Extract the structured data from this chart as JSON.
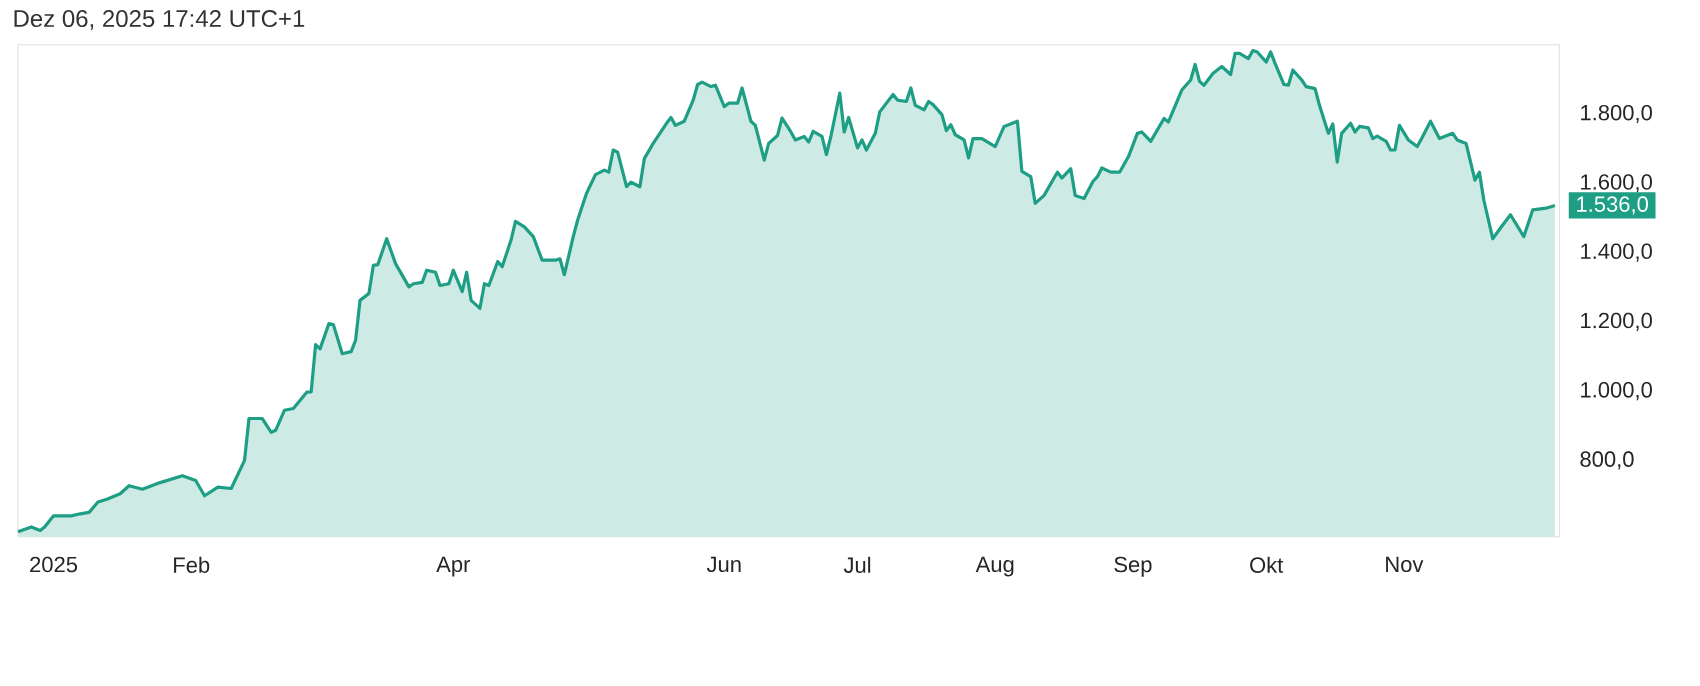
{
  "chart_data": {
    "type": "area",
    "annotations": [
      "Dez 06, 2025 17:42 UTC+1",
      {
        "text": "1.536,0",
        "x": "2025-12-05",
        "y": 1536
      }
    ],
    "x": [
      "2024-12-24",
      "2024-12-27",
      "2024-12-29",
      "2024-12-30",
      "2025-01-01",
      "2025-01-05",
      "2025-01-07",
      "2025-01-09",
      "2025-01-11",
      "2025-01-13",
      "2025-01-16",
      "2025-01-18",
      "2025-01-21",
      "2025-01-25",
      "2025-01-30",
      "2025-02-02",
      "2025-02-04",
      "2025-02-07",
      "2025-02-10",
      "2025-02-11",
      "2025-02-13",
      "2025-02-14",
      "2025-02-17",
      "2025-02-19",
      "2025-02-20",
      "2025-02-22",
      "2025-02-24",
      "2025-02-27",
      "2025-02-28",
      "2025-03-01",
      "2025-03-02",
      "2025-03-04",
      "2025-03-05",
      "2025-03-07",
      "2025-03-09",
      "2025-03-10",
      "2025-03-11",
      "2025-03-13",
      "2025-03-14",
      "2025-03-15",
      "2025-03-17",
      "2025-03-19",
      "2025-03-22",
      "2025-03-23",
      "2025-03-25",
      "2025-03-26",
      "2025-03-28",
      "2025-03-29",
      "2025-03-31",
      "2025-04-01",
      "2025-04-03",
      "2025-04-04",
      "2025-04-05",
      "2025-04-07",
      "2025-04-08",
      "2025-04-09",
      "2025-04-11",
      "2025-04-12",
      "2025-04-14",
      "2025-04-15",
      "2025-04-17",
      "2025-04-19",
      "2025-04-21",
      "2025-04-24",
      "2025-04-25",
      "2025-04-26",
      "2025-04-28",
      "2025-04-29",
      "2025-05-01",
      "2025-05-03",
      "2025-05-05",
      "2025-05-06",
      "2025-05-07",
      "2025-05-08",
      "2025-05-10",
      "2025-05-11",
      "2025-05-13",
      "2025-05-14",
      "2025-05-16",
      "2025-05-19",
      "2025-05-20",
      "2025-05-21",
      "2025-05-23",
      "2025-05-25",
      "2025-05-26",
      "2025-05-27",
      "2025-05-29",
      "2025-05-30",
      "2025-06-01",
      "2025-06-02",
      "2025-06-04",
      "2025-06-05",
      "2025-06-07",
      "2025-06-08",
      "2025-06-10",
      "2025-06-11",
      "2025-06-13",
      "2025-06-14",
      "2025-06-16",
      "2025-06-17",
      "2025-06-19",
      "2025-06-20",
      "2025-06-21",
      "2025-06-23",
      "2025-06-24",
      "2025-06-25",
      "2025-06-27",
      "2025-06-28",
      "2025-06-29",
      "2025-07-01",
      "2025-07-02",
      "2025-07-03",
      "2025-07-05",
      "2025-07-06",
      "2025-07-09",
      "2025-07-10",
      "2025-07-12",
      "2025-07-13",
      "2025-07-14",
      "2025-07-16",
      "2025-07-17",
      "2025-07-18",
      "2025-07-20",
      "2025-07-21",
      "2025-07-22",
      "2025-07-23",
      "2025-07-25",
      "2025-07-26",
      "2025-07-27",
      "2025-07-29",
      "2025-08-01",
      "2025-08-03",
      "2025-08-04",
      "2025-08-06",
      "2025-08-07",
      "2025-08-09",
      "2025-08-10",
      "2025-08-12",
      "2025-08-15",
      "2025-08-16",
      "2025-08-18",
      "2025-08-19",
      "2025-08-21",
      "2025-08-23",
      "2025-08-24",
      "2025-08-25",
      "2025-08-27",
      "2025-08-29",
      "2025-08-31",
      "2025-09-02",
      "2025-09-03",
      "2025-09-05",
      "2025-09-08",
      "2025-09-09",
      "2025-09-12",
      "2025-09-14",
      "2025-09-15",
      "2025-09-16",
      "2025-09-17",
      "2025-09-19",
      "2025-09-21",
      "2025-09-23",
      "2025-09-24",
      "2025-09-25",
      "2025-09-27",
      "2025-09-28",
      "2025-09-29",
      "2025-10-01",
      "2025-10-02",
      "2025-10-03",
      "2025-10-05",
      "2025-10-06",
      "2025-10-07",
      "2025-10-09",
      "2025-10-10",
      "2025-10-12",
      "2025-10-13",
      "2025-10-15",
      "2025-10-16",
      "2025-10-17",
      "2025-10-18",
      "2025-10-20",
      "2025-10-21",
      "2025-10-22",
      "2025-10-24",
      "2025-10-25",
      "2025-10-26",
      "2025-10-28",
      "2025-10-29",
      "2025-10-30",
      "2025-10-31",
      "2025-11-02",
      "2025-11-04",
      "2025-11-05",
      "2025-11-07",
      "2025-11-09",
      "2025-11-12",
      "2025-11-13",
      "2025-11-15",
      "2025-11-17",
      "2025-11-18",
      "2025-11-19",
      "2025-11-21",
      "2025-11-23",
      "2025-11-25",
      "2025-11-28",
      "2025-11-30",
      "2025-12-03",
      "2025-12-05"
    ],
    "series": [
      {
        "color": "#1e9e84",
        "values": [
          594,
          608,
          598,
          608,
          640,
          640,
          646,
          650,
          680,
          688,
          704,
          727,
          717,
          736,
          756,
          742,
          698,
          723,
          719,
          746,
          800,
          921,
          921,
          881,
          887,
          945,
          950,
          997,
          998,
          1134,
          1122,
          1195,
          1192,
          1108,
          1114,
          1147,
          1262,
          1282,
          1363,
          1365,
          1440,
          1368,
          1301,
          1310,
          1314,
          1349,
          1343,
          1305,
          1310,
          1349,
          1287,
          1343,
          1262,
          1239,
          1310,
          1305,
          1374,
          1359,
          1436,
          1490,
          1474,
          1446,
          1378,
          1378,
          1382,
          1336,
          1446,
          1494,
          1571,
          1625,
          1638,
          1632,
          1696,
          1690,
          1590,
          1603,
          1590,
          1671,
          1715,
          1773,
          1790,
          1767,
          1779,
          1840,
          1885,
          1892,
          1879,
          1883,
          1821,
          1831,
          1831,
          1875,
          1779,
          1767,
          1667,
          1715,
          1738,
          1788,
          1748,
          1725,
          1735,
          1719,
          1750,
          1735,
          1683,
          1735,
          1860,
          1748,
          1790,
          1702,
          1725,
          1696,
          1744,
          1806,
          1856,
          1840,
          1836,
          1875,
          1825,
          1812,
          1836,
          1827,
          1798,
          1752,
          1769,
          1740,
          1725,
          1673,
          1729,
          1729,
          1706,
          1764,
          1769,
          1779,
          1634,
          1619,
          1542,
          1565,
          1632,
          1615,
          1642,
          1565,
          1556,
          1605,
          1619,
          1644,
          1632,
          1632,
          1677,
          1744,
          1748,
          1721,
          1787,
          1777,
          1869,
          1898,
          1943,
          1894,
          1883,
          1917,
          1937,
          1914,
          1975,
          1975,
          1960,
          1983,
          1979,
          1950,
          1979,
          1946,
          1885,
          1883,
          1927,
          1898,
          1879,
          1873,
          1825,
          1744,
          1771,
          1661,
          1744,
          1773,
          1748,
          1764,
          1760,
          1729,
          1736,
          1721,
          1696,
          1696,
          1767,
          1725,
          1706,
          1729,
          1779,
          1729,
          1744,
          1725,
          1715,
          1609,
          1632,
          1551,
          1440,
          1475,
          1509,
          1446,
          1523,
          1528,
          1536
        ]
      }
    ],
    "xlim": [
      "2024-12-24",
      "2025-12-06"
    ],
    "xticks": [
      {
        "value": "2025-01-01",
        "label": "2025"
      },
      {
        "value": "2025-02-01",
        "label": "Feb"
      },
      {
        "value": "2025-04-01",
        "label": "Apr"
      },
      {
        "value": "2025-06-01",
        "label": "Jun"
      },
      {
        "value": "2025-07-01",
        "label": "Jul"
      },
      {
        "value": "2025-08-01",
        "label": "Aug"
      },
      {
        "value": "2025-09-01",
        "label": "Sep"
      },
      {
        "value": "2025-10-01",
        "label": "Okt"
      },
      {
        "value": "2025-11-01",
        "label": "Nov"
      }
    ],
    "ylim": [
      580,
      2000
    ],
    "yticks": [
      {
        "value": 800,
        "label": "800,0"
      },
      {
        "value": 1000,
        "label": "1.000,0"
      },
      {
        "value": 1200,
        "label": "1.200,0"
      },
      {
        "value": 1400,
        "label": "1.400,0"
      },
      {
        "value": 1600,
        "label": "1.600,0"
      },
      {
        "value": 1800,
        "label": "1.800,0"
      }
    ],
    "line_style": "solid"
  }
}
